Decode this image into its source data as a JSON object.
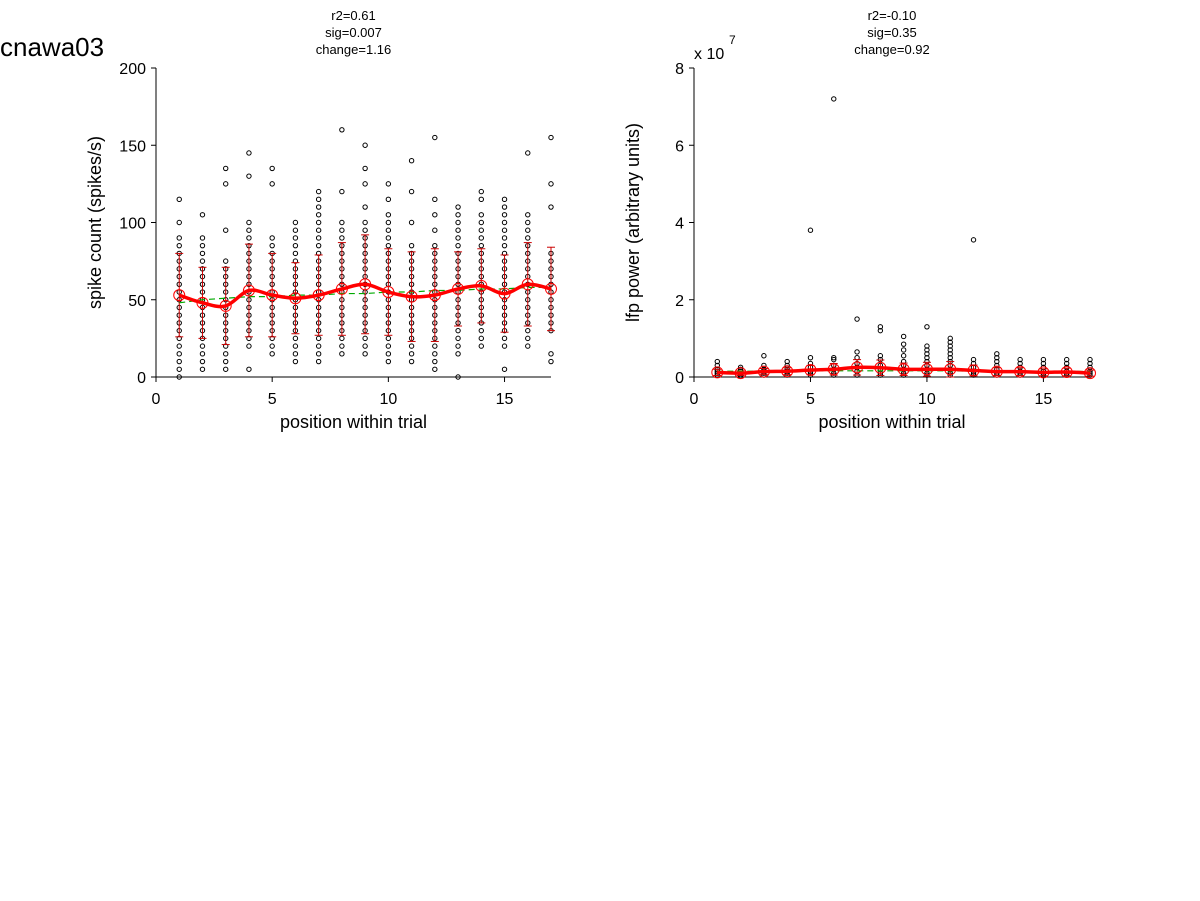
{
  "figure": {
    "title": "cnawa03"
  },
  "colors": {
    "mean_line": "#ff0000",
    "fit_line": "#00aa00",
    "points": "#000000",
    "error_bars": "#cc0000"
  },
  "chart_data": [
    {
      "type": "scatter",
      "stats": [
        "r2=0.61",
        "sig=0.007",
        "change=1.16"
      ],
      "xlabel": "position within trial",
      "ylabel": "spike count (spikes/s)",
      "xlim": [
        0,
        17
      ],
      "ylim": [
        0,
        200
      ],
      "xticks": [
        0,
        5,
        10,
        15
      ],
      "yticks": [
        0,
        50,
        100,
        150,
        200
      ],
      "exponent_label": "",
      "positions": [
        1,
        2,
        3,
        4,
        5,
        6,
        7,
        8,
        9,
        10,
        11,
        12,
        13,
        14,
        15,
        16,
        17
      ],
      "points": [
        [
          0,
          5,
          10,
          15,
          20,
          25,
          30,
          35,
          40,
          45,
          50,
          55,
          60,
          65,
          70,
          75,
          80,
          85,
          90,
          100,
          115
        ],
        [
          5,
          10,
          15,
          20,
          25,
          30,
          35,
          40,
          45,
          50,
          55,
          60,
          65,
          70,
          75,
          80,
          85,
          90,
          105
        ],
        [
          5,
          10,
          15,
          20,
          25,
          30,
          35,
          40,
          45,
          50,
          55,
          60,
          65,
          70,
          75,
          95,
          125,
          135
        ],
        [
          5,
          20,
          25,
          30,
          35,
          40,
          45,
          50,
          55,
          60,
          65,
          70,
          75,
          80,
          85,
          90,
          95,
          100,
          130,
          145
        ],
        [
          15,
          20,
          25,
          30,
          35,
          40,
          45,
          50,
          55,
          60,
          65,
          70,
          75,
          80,
          85,
          90,
          125,
          135
        ],
        [
          10,
          15,
          20,
          25,
          30,
          35,
          40,
          45,
          50,
          55,
          60,
          65,
          70,
          75,
          80,
          85,
          90,
          95,
          100
        ],
        [
          10,
          15,
          20,
          25,
          30,
          35,
          40,
          45,
          50,
          55,
          60,
          65,
          70,
          75,
          80,
          85,
          90,
          95,
          100,
          105,
          110,
          115,
          120
        ],
        [
          15,
          20,
          25,
          30,
          35,
          40,
          45,
          50,
          55,
          60,
          65,
          70,
          75,
          80,
          85,
          90,
          95,
          100,
          120,
          160
        ],
        [
          15,
          20,
          25,
          30,
          35,
          40,
          45,
          50,
          55,
          60,
          65,
          70,
          75,
          80,
          85,
          90,
          95,
          100,
          110,
          125,
          135,
          150
        ],
        [
          10,
          15,
          20,
          25,
          30,
          35,
          40,
          45,
          50,
          55,
          60,
          65,
          70,
          75,
          80,
          85,
          90,
          95,
          100,
          105,
          115,
          125
        ],
        [
          10,
          15,
          20,
          25,
          30,
          35,
          40,
          45,
          50,
          55,
          60,
          65,
          70,
          75,
          80,
          85,
          100,
          120,
          140
        ],
        [
          5,
          10,
          15,
          20,
          25,
          30,
          35,
          40,
          45,
          50,
          55,
          60,
          65,
          70,
          75,
          80,
          85,
          95,
          105,
          115,
          155
        ],
        [
          0,
          15,
          20,
          25,
          30,
          35,
          40,
          45,
          50,
          55,
          60,
          65,
          70,
          75,
          80,
          85,
          90,
          95,
          100,
          105,
          110
        ],
        [
          20,
          25,
          30,
          35,
          40,
          45,
          50,
          55,
          60,
          65,
          70,
          75,
          80,
          85,
          90,
          95,
          100,
          105,
          115,
          120
        ],
        [
          5,
          20,
          25,
          30,
          35,
          40,
          45,
          50,
          55,
          60,
          65,
          70,
          75,
          80,
          85,
          90,
          95,
          100,
          105,
          110,
          115
        ],
        [
          20,
          25,
          30,
          35,
          40,
          45,
          50,
          55,
          60,
          65,
          70,
          75,
          80,
          85,
          90,
          95,
          100,
          105,
          145
        ],
        [
          10,
          15,
          30,
          35,
          40,
          45,
          50,
          55,
          60,
          65,
          70,
          75,
          80,
          110,
          125,
          155
        ]
      ],
      "mean": [
        53,
        48,
        46,
        56,
        53,
        51,
        53,
        57,
        60,
        55,
        52,
        53,
        57,
        59,
        54,
        60,
        57
      ],
      "error": [
        27,
        23,
        25,
        30,
        27,
        23,
        26,
        30,
        32,
        28,
        29,
        30,
        24,
        24,
        25,
        27,
        27
      ],
      "fit": [
        48,
        50,
        51,
        52,
        52,
        53,
        53,
        54,
        54,
        55,
        55,
        56,
        56,
        57,
        57,
        58,
        58
      ]
    },
    {
      "type": "scatter",
      "stats": [
        "r2=-0.10",
        "sig=0.35",
        "change=0.92"
      ],
      "xlabel": "position within trial",
      "ylabel": "lfp power (arbitrary units)",
      "xlim": [
        0,
        17
      ],
      "ylim": [
        0,
        8
      ],
      "xticks": [
        0,
        5,
        10,
        15
      ],
      "yticks": [
        0,
        2,
        4,
        6,
        8
      ],
      "exponent_label": "x 10",
      "exponent_power": "7",
      "positions": [
        1,
        2,
        3,
        4,
        5,
        6,
        7,
        8,
        9,
        10,
        11,
        12,
        13,
        14,
        15,
        16,
        17
      ],
      "points": [
        [
          0.05,
          0.1,
          0.15,
          0.2,
          0.3,
          0.4
        ],
        [
          0.02,
          0.06,
          0.1,
          0.15,
          0.2,
          0.25
        ],
        [
          0.05,
          0.1,
          0.15,
          0.2,
          0.3,
          0.55
        ],
        [
          0.05,
          0.1,
          0.15,
          0.2,
          0.3,
          0.4
        ],
        [
          0.05,
          0.1,
          0.15,
          0.25,
          0.35,
          0.5,
          3.8
        ],
        [
          0.05,
          0.1,
          0.2,
          0.3,
          0.45,
          0.5,
          7.2
        ],
        [
          0.05,
          0.15,
          0.25,
          0.35,
          0.5,
          0.65,
          1.5
        ],
        [
          0.05,
          0.1,
          0.2,
          0.3,
          0.45,
          0.55,
          1.2,
          1.3
        ],
        [
          0.05,
          0.1,
          0.2,
          0.3,
          0.4,
          0.55,
          0.7,
          0.85,
          1.05
        ],
        [
          0.05,
          0.1,
          0.2,
          0.3,
          0.4,
          0.5,
          0.6,
          0.7,
          0.8,
          1.3
        ],
        [
          0.05,
          0.1,
          0.2,
          0.3,
          0.4,
          0.5,
          0.6,
          0.7,
          0.8,
          0.9,
          1.0
        ],
        [
          0.05,
          0.1,
          0.15,
          0.25,
          0.35,
          0.45,
          3.55
        ],
        [
          0.05,
          0.1,
          0.2,
          0.3,
          0.4,
          0.5,
          0.6
        ],
        [
          0.05,
          0.1,
          0.15,
          0.25,
          0.35,
          0.45
        ],
        [
          0.05,
          0.1,
          0.15,
          0.25,
          0.35,
          0.45
        ],
        [
          0.05,
          0.1,
          0.15,
          0.25,
          0.35,
          0.45
        ],
        [
          0.05,
          0.1,
          0.15,
          0.25,
          0.35,
          0.45
        ]
      ],
      "mean": [
        0.12,
        0.1,
        0.14,
        0.15,
        0.18,
        0.2,
        0.25,
        0.24,
        0.2,
        0.2,
        0.2,
        0.17,
        0.14,
        0.14,
        0.12,
        0.13,
        0.1
      ],
      "error": [
        0.08,
        0.06,
        0.08,
        0.09,
        0.12,
        0.15,
        0.2,
        0.2,
        0.16,
        0.18,
        0.2,
        0.14,
        0.1,
        0.1,
        0.09,
        0.1,
        0.08
      ],
      "fit": [
        0.15,
        0.15,
        0.15,
        0.16,
        0.16,
        0.16,
        0.16,
        0.16,
        0.16,
        0.16,
        0.16,
        0.15,
        0.15,
        0.15,
        0.15,
        0.15,
        0.14
      ]
    }
  ]
}
